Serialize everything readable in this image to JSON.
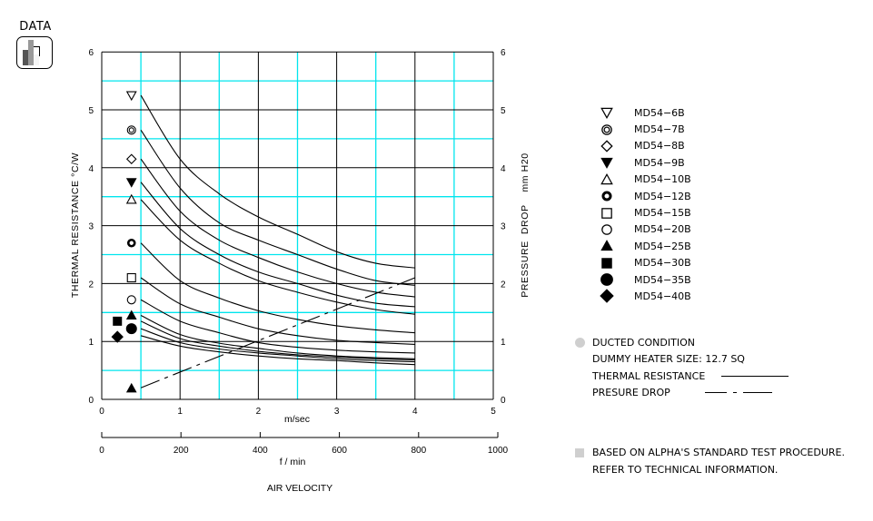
{
  "badge": {
    "label": "DATA",
    "icon": "bar-chart-icon"
  },
  "chart_data": {
    "type": "line",
    "title": "",
    "xlabel": "AIR VELOCITY",
    "x_primary_unit": "m/sec",
    "x_secondary_unit": "f / min",
    "ylabel_left": "THERMAL RESISTANCE  °C/W",
    "ylabel_right": "PRESSURE  DROP    mm H20",
    "xlim": [
      0,
      5
    ],
    "ylim": [
      0,
      6
    ],
    "x_ticks": [
      "0",
      "1",
      "2",
      "3",
      "4",
      "5"
    ],
    "x_secondary_ticks": [
      "0",
      "200",
      "400",
      "600",
      "800",
      "1000"
    ],
    "y_ticks": [
      "0",
      "1",
      "2",
      "3",
      "4",
      "5",
      "6"
    ],
    "grid": true,
    "x": [
      0.5,
      1.0,
      1.5,
      2.0,
      2.5,
      3.0,
      3.5,
      4.0
    ],
    "series": [
      {
        "name": "MD54-6B",
        "marker": "triangle-down-open",
        "values": [
          5.25,
          4.15,
          3.55,
          3.15,
          2.85,
          2.55,
          2.35,
          2.27
        ]
      },
      {
        "name": "MD54-7B",
        "marker": "double-circle",
        "values": [
          4.65,
          3.65,
          3.05,
          2.75,
          2.5,
          2.25,
          2.05,
          1.97
        ]
      },
      {
        "name": "MD54-8B",
        "marker": "diamond-open",
        "values": [
          4.15,
          3.25,
          2.75,
          2.45,
          2.2,
          2.0,
          1.85,
          1.77
        ]
      },
      {
        "name": "MD54-9B",
        "marker": "triangle-down-filled",
        "values": [
          3.75,
          2.95,
          2.5,
          2.2,
          2.0,
          1.8,
          1.66,
          1.6
        ]
      },
      {
        "name": "MD54-10B",
        "marker": "triangle-up-open",
        "values": [
          3.45,
          2.75,
          2.35,
          2.05,
          1.85,
          1.68,
          1.55,
          1.47
        ]
      },
      {
        "name": "MD54-12B",
        "marker": "thick-ring",
        "values": [
          2.7,
          2.05,
          1.75,
          1.53,
          1.38,
          1.27,
          1.2,
          1.15
        ]
      },
      {
        "name": "MD54-15B",
        "marker": "square-open",
        "values": [
          2.1,
          1.65,
          1.42,
          1.22,
          1.1,
          1.02,
          0.98,
          0.95
        ]
      },
      {
        "name": "MD54-20B",
        "marker": "circle-open",
        "values": [
          1.72,
          1.35,
          1.15,
          0.98,
          0.9,
          0.85,
          0.82,
          0.8
        ]
      },
      {
        "name": "MD54-25B",
        "marker": "triangle-up-filled",
        "values": [
          1.45,
          1.12,
          0.97,
          0.88,
          0.8,
          0.75,
          0.72,
          0.7
        ]
      },
      {
        "name": "MD54-30B",
        "marker": "square-filled",
        "values": [
          1.35,
          1.05,
          0.92,
          0.83,
          0.77,
          0.73,
          0.7,
          0.68
        ]
      },
      {
        "name": "MD54-35B",
        "marker": "circle-filled",
        "values": [
          1.22,
          0.98,
          0.87,
          0.8,
          0.75,
          0.7,
          0.67,
          0.65
        ]
      },
      {
        "name": "MD54-40B",
        "marker": "diamond-filled",
        "values": [
          1.1,
          0.92,
          0.82,
          0.75,
          0.7,
          0.67,
          0.63,
          0.6
        ]
      }
    ],
    "pressure_drop": {
      "name": "PRESURE DROP",
      "style": "dash-dot",
      "x": [
        0.5,
        4.0
      ],
      "values": [
        0.2,
        2.1
      ]
    },
    "legend_position": "right"
  },
  "legend": {
    "items": [
      {
        "label": "MD54−6B"
      },
      {
        "label": "MD54−7B"
      },
      {
        "label": "MD54−8B"
      },
      {
        "label": "MD54−9B"
      },
      {
        "label": "MD54−10B"
      },
      {
        "label": "MD54−12B"
      },
      {
        "label": "MD54−15B"
      },
      {
        "label": "MD54−20B"
      },
      {
        "label": "MD54−25B"
      },
      {
        "label": "MD54−30B"
      },
      {
        "label": "MD54−35B"
      },
      {
        "label": "MD54−40B"
      }
    ]
  },
  "notes": {
    "condition": "DUCTED CONDITION",
    "heater": "DUMMY HEATER SIZE: 12.7 SQ",
    "thermal_label": "THERMAL RESISTANCE",
    "pressure_label": "PRESURE DROP"
  },
  "footnote": {
    "line1": "BASED ON ALPHA'S STANDARD TEST PROCEDURE.",
    "line2": "REFER TO TECHNICAL INFORMATION."
  },
  "colors": {
    "grid_major": "#000000",
    "grid_minor": "#00e5ee",
    "curve": "#000000",
    "note_marker": "#cfcfcf"
  }
}
